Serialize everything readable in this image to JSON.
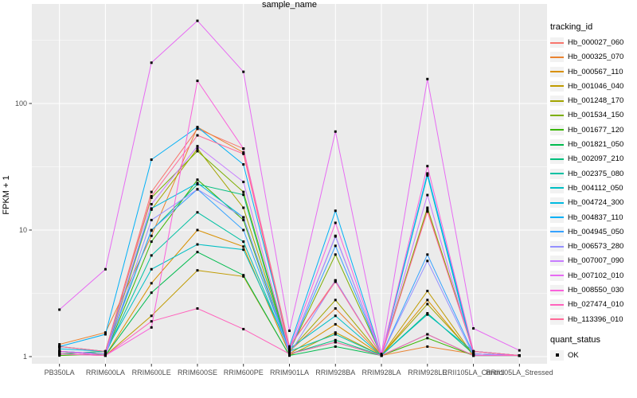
{
  "figure": {
    "background": "#FFFFFF",
    "panel_bg": "#EBEBEB",
    "grid_color": "#FFFFFF",
    "axis_text_color": "#4D4D4D",
    "tick_color": "#333333",
    "point_color": "#000000"
  },
  "chart_data": {
    "type": "line",
    "title": "",
    "xlabel": "sample_name",
    "ylabel": "FPKM + 1",
    "y_scale": "log10",
    "ylim": [
      1,
      460
    ],
    "y_ticks": [
      1,
      10,
      100
    ],
    "grid": true,
    "legend_position": "right",
    "legend_titles": {
      "color": "tracking_id",
      "shape": "quant_status"
    },
    "quant_status": [
      "OK"
    ],
    "point_shape": "filled-black-square",
    "categories": [
      "PB350LA",
      "RRIM600LA",
      "RRIM600LE",
      "RRIM600SE",
      "RRIM600PE",
      "RRIM901LA",
      "RRIM928BA",
      "RRIM928LA",
      "RRIM928LE",
      "RRII105LA_Control",
      "RRII105LA_Stressed"
    ],
    "series": [
      {
        "name": "Hb_000027_060",
        "color": "#F8766D",
        "values": [
          1.2,
          1.1,
          20,
          63,
          44,
          1.2,
          4.0,
          1.02,
          14.5,
          1.1,
          1.02
        ]
      },
      {
        "name": "Hb_000325_070",
        "color": "#EA8331",
        "values": [
          1.25,
          1.55,
          9.0,
          65,
          41,
          1.1,
          2.4,
          1.02,
          1.2,
          1.05,
          1.02
        ]
      },
      {
        "name": "Hb_000567_110",
        "color": "#D89000",
        "values": [
          1.1,
          1.02,
          3.8,
          10,
          7.4,
          1.05,
          1.8,
          1.02,
          2.8,
          1.02,
          1.02
        ]
      },
      {
        "name": "Hb_001046_040",
        "color": "#C09B00",
        "values": [
          1.05,
          1.02,
          2.1,
          4.8,
          4.3,
          1.02,
          1.55,
          1.02,
          3.3,
          1.02,
          1.02
        ]
      },
      {
        "name": "Hb_001248_170",
        "color": "#A3A500",
        "values": [
          1.1,
          1.05,
          14.5,
          44,
          15,
          1.1,
          2.8,
          1.02,
          2.6,
          1.05,
          1.02
        ]
      },
      {
        "name": "Hb_001534_150",
        "color": "#7CAE00",
        "values": [
          1.05,
          1.1,
          18,
          42,
          20,
          1.1,
          6.4,
          1.02,
          15,
          1.1,
          1.02
        ]
      },
      {
        "name": "Hb_001677_120",
        "color": "#39B600",
        "values": [
          1.02,
          1.05,
          8.1,
          25,
          12,
          1.05,
          1.3,
          1.02,
          1.4,
          1.02,
          1.02
        ]
      },
      {
        "name": "Hb_001821_050",
        "color": "#00BB4E",
        "values": [
          1.1,
          1.02,
          3.2,
          6.7,
          4.4,
          1.02,
          1.2,
          1.02,
          1.5,
          1.02,
          1.02
        ]
      },
      {
        "name": "Hb_002097_210",
        "color": "#00BF7D",
        "values": [
          1.05,
          1.1,
          9.9,
          23,
          19,
          1.05,
          1.35,
          1.02,
          2.2,
          1.05,
          1.02
        ]
      },
      {
        "name": "Hb_002375_080",
        "color": "#00C1A3",
        "values": [
          1.1,
          1.05,
          6.3,
          13.8,
          8.1,
          1.1,
          1.5,
          1.02,
          27,
          1.02,
          1.02
        ]
      },
      {
        "name": "Hb_004112_050",
        "color": "#00BFC4",
        "values": [
          1.2,
          1.1,
          4.9,
          7.7,
          7.0,
          1.15,
          2.1,
          1.02,
          2.15,
          1.1,
          1.02
        ]
      },
      {
        "name": "Hb_004724_300",
        "color": "#00BAE0",
        "values": [
          1.15,
          1.1,
          14.8,
          23.5,
          12.6,
          1.1,
          8.9,
          1.02,
          27.5,
          1.05,
          1.02
        ]
      },
      {
        "name": "Hb_004837_110",
        "color": "#00B0F6",
        "values": [
          1.2,
          1.5,
          36,
          65,
          33,
          1.2,
          14.2,
          1.02,
          28,
          1.1,
          1.02
        ]
      },
      {
        "name": "Hb_004945_050",
        "color": "#35A2FF",
        "values": [
          1.1,
          1.05,
          10,
          21,
          10,
          1.1,
          7.5,
          1.02,
          6.4,
          1.05,
          1.02
        ]
      },
      {
        "name": "Hb_006573_280",
        "color": "#9590FF",
        "values": [
          1.05,
          1.02,
          12,
          21,
          12.6,
          1.05,
          4.0,
          1.02,
          5.7,
          1.02,
          1.02
        ]
      },
      {
        "name": "Hb_007007_090",
        "color": "#C77CFF",
        "values": [
          1.1,
          1.05,
          16,
          46,
          24,
          1.1,
          9.0,
          1.02,
          18.9,
          1.05,
          1.02
        ]
      },
      {
        "name": "Hb_007102_010",
        "color": "#E76BF3",
        "values": [
          2.35,
          4.9,
          210,
          450,
          178,
          1.6,
          60,
          1.05,
          156,
          1.67,
          1.12
        ]
      },
      {
        "name": "Hb_008550_030",
        "color": "#FA62DB",
        "values": [
          1.1,
          1.02,
          1.7,
          151,
          44,
          1.15,
          11.4,
          1.02,
          32,
          1.1,
          1.02
        ]
      },
      {
        "name": "Hb_027474_010",
        "color": "#FF62BC",
        "values": [
          1.05,
          1.02,
          1.9,
          2.4,
          1.65,
          1.05,
          1.3,
          1.02,
          1.5,
          1.02,
          1.02
        ]
      },
      {
        "name": "Hb_113396_010",
        "color": "#FF6A98",
        "values": [
          1.2,
          1.1,
          18.5,
          56,
          40,
          1.2,
          3.9,
          1.02,
          14.0,
          1.1,
          1.02
        ]
      }
    ]
  }
}
